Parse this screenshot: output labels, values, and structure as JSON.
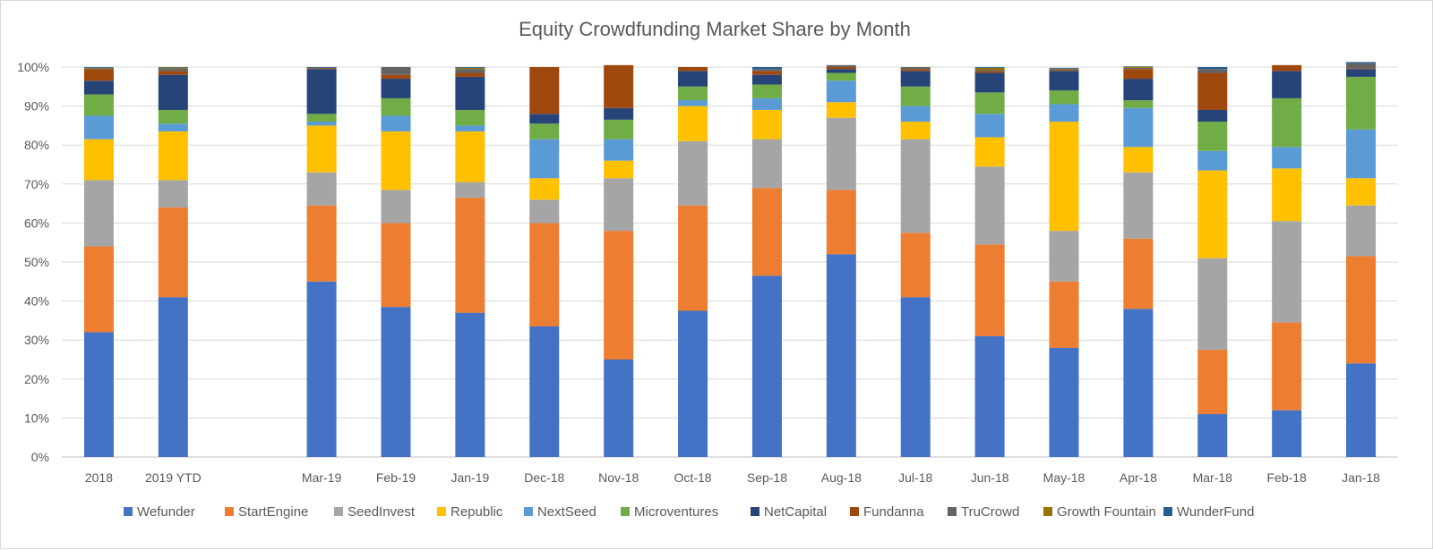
{
  "chart_data": {
    "type": "bar",
    "stacked": true,
    "title": "Equity Crowdfunding Market Share by Month",
    "xlabel": "",
    "ylabel": "",
    "ylim": [
      0,
      100
    ],
    "yticks": [
      "0%",
      "10%",
      "20%",
      "30%",
      "40%",
      "50%",
      "60%",
      "70%",
      "80%",
      "90%",
      "100%"
    ],
    "grid": true,
    "legend_position": "bottom",
    "categories": [
      "2018",
      "2019 YTD",
      "",
      "Mar-19",
      "Feb-19",
      "Jan-19",
      "Dec-18",
      "Nov-18",
      "Oct-18",
      "Sep-18",
      "Aug-18",
      "Jul-18",
      "Jun-18",
      "May-18",
      "Apr-18",
      "Mar-18",
      "Feb-18",
      "Jan-18"
    ],
    "series": [
      {
        "name": "Wefunder",
        "color": "#4472c4",
        "values": [
          32,
          41,
          null,
          45,
          38.5,
          37,
          33.5,
          25,
          37.5,
          46.5,
          52,
          41,
          31,
          28,
          38,
          11,
          12,
          24
        ]
      },
      {
        "name": "StartEngine",
        "color": "#ed7d31",
        "values": [
          22,
          23,
          null,
          19.5,
          21.5,
          29.5,
          26.5,
          33,
          27,
          22.5,
          16.5,
          16.5,
          23.5,
          17,
          18,
          16.5,
          22.5,
          27.5
        ]
      },
      {
        "name": "SeedInvest",
        "color": "#a5a5a5",
        "values": [
          17,
          7,
          null,
          8.5,
          8.5,
          4,
          6,
          13.5,
          16.5,
          12.5,
          18.5,
          24,
          20,
          13,
          17,
          23.5,
          26,
          13
        ]
      },
      {
        "name": "Republic",
        "color": "#ffc000",
        "values": [
          10.5,
          12.5,
          null,
          12,
          15,
          13,
          5.5,
          4.5,
          9,
          7.5,
          4,
          4.5,
          7.5,
          28,
          6.5,
          22.5,
          13.5,
          7
        ]
      },
      {
        "name": "NextSeed",
        "color": "#5b9bd5",
        "values": [
          6,
          2,
          null,
          1,
          4,
          1.5,
          10,
          5.5,
          1.5,
          3,
          5.5,
          4,
          6,
          4.5,
          10,
          5,
          5.5,
          12.5
        ]
      },
      {
        "name": "Microventures",
        "color": "#70ad47",
        "values": [
          5.5,
          3.5,
          null,
          2,
          4.5,
          4,
          4,
          5,
          3.5,
          3.5,
          2,
          5,
          5.5,
          3.5,
          2,
          7.5,
          12.5,
          13.5
        ]
      },
      {
        "name": "NetCapital",
        "color": "#264478",
        "values": [
          3.5,
          9,
          null,
          11.5,
          5,
          8.5,
          2.5,
          3,
          4,
          2.5,
          1,
          4,
          5,
          5,
          5.5,
          3,
          7,
          2
        ]
      },
      {
        "name": "Fundanna",
        "color": "#9e480e",
        "values": [
          3,
          1,
          null,
          0.2,
          1,
          1,
          12,
          11,
          1,
          1,
          0.5,
          0.5,
          0.5,
          0.2,
          2.5,
          9.5,
          1.5,
          0.2
        ]
      },
      {
        "name": "TruCrowd",
        "color": "#636363",
        "values": [
          0.2,
          0.7,
          null,
          0.2,
          2,
          1,
          0,
          0,
          0,
          0.5,
          0.5,
          0.5,
          0.3,
          0.2,
          0.3,
          1,
          0,
          1.3
        ]
      },
      {
        "name": "Growth Fountain",
        "color": "#997300",
        "values": [
          0.1,
          0.2,
          null,
          0,
          0,
          0.3,
          0,
          0,
          0,
          0,
          0,
          0,
          0.5,
          0.2,
          0.3,
          0,
          0,
          0
        ]
      },
      {
        "name": "WunderFund",
        "color": "#255e91",
        "values": [
          0.2,
          0.1,
          null,
          0.1,
          0,
          0.2,
          0,
          0,
          0,
          0.5,
          0,
          0,
          0.2,
          0.2,
          0.1,
          0.5,
          0,
          0.3
        ]
      }
    ]
  }
}
